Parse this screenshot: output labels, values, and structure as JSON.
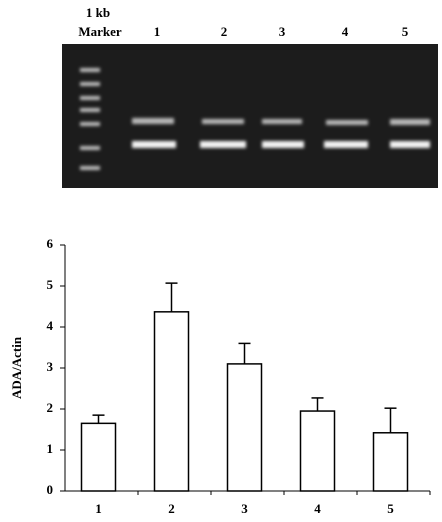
{
  "gel": {
    "marker_label": [
      "1 kb",
      "Marker"
    ],
    "lanes": [
      "1",
      "2",
      "3",
      "4",
      "5"
    ]
  },
  "chart_data": {
    "type": "bar",
    "y_label": "ADA/Actin",
    "categories": [
      "1",
      "2",
      "3",
      "4",
      "5"
    ],
    "values": [
      1.65,
      4.37,
      3.1,
      1.95,
      1.42
    ],
    "errors": [
      0.2,
      0.7,
      0.5,
      0.32,
      0.6
    ],
    "color": "#ffffff",
    "ylim": [
      0,
      6
    ],
    "yticks": [
      0,
      1,
      2,
      3,
      4,
      5,
      6
    ]
  }
}
